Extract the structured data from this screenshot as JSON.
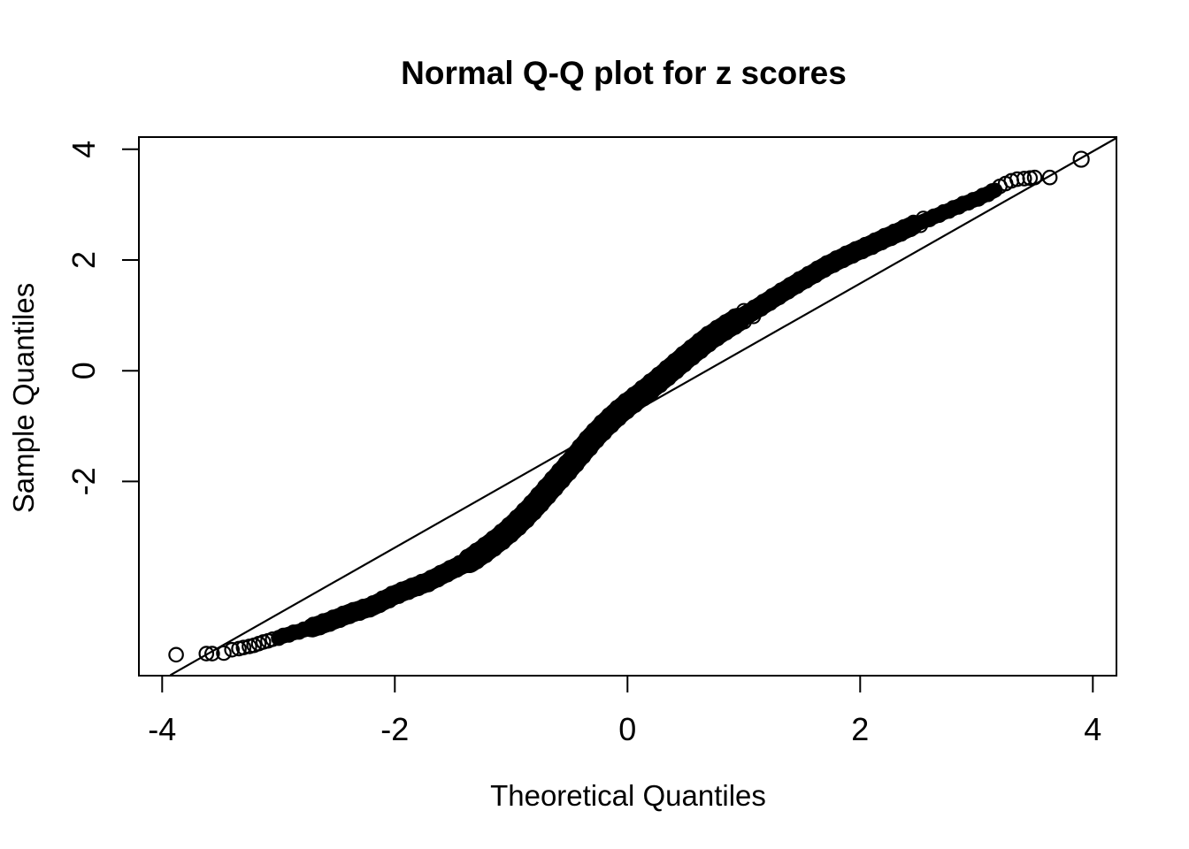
{
  "page": {
    "background": "#ffffff",
    "foreground": "#000000"
  },
  "chart_data": {
    "type": "scatter",
    "variant": "normal-qq-plot",
    "title": "Normal Q-Q plot for z scores",
    "xlabel": "Theoretical Quantiles",
    "ylabel": "Sample Quantiles",
    "x_ticks": [
      -4,
      -2,
      0,
      2,
      4
    ],
    "y_ticks": [
      -2,
      0,
      2,
      4
    ],
    "xlim": [
      -4.2,
      4.2
    ],
    "ylim": [
      -5.51,
      4.22
    ],
    "grid": false,
    "legend_position": "none",
    "point_color": "#000000",
    "line_color": "#000000",
    "marker": "open-circle",
    "reference_line": {
      "slope": 1.193,
      "intercept": -0.81,
      "x_start": -3.93,
      "x_end": 4.205
    },
    "curve_points": [
      [
        -3.0,
        -4.82
      ],
      [
        -2.88,
        -4.74
      ],
      [
        -2.71,
        -4.64
      ],
      [
        -2.55,
        -4.52
      ],
      [
        -2.38,
        -4.38
      ],
      [
        -2.2,
        -4.26
      ],
      [
        -2.0,
        -4.05
      ],
      [
        -1.87,
        -3.94
      ],
      [
        -1.72,
        -3.82
      ],
      [
        -1.6,
        -3.69
      ],
      [
        -1.48,
        -3.56
      ],
      [
        -1.36,
        -3.44
      ],
      [
        -1.23,
        -3.25
      ],
      [
        -1.1,
        -3.04
      ],
      [
        -1.0,
        -2.86
      ],
      [
        -0.9,
        -2.66
      ],
      [
        -0.8,
        -2.44
      ],
      [
        -0.7,
        -2.2
      ],
      [
        -0.6,
        -1.96
      ],
      [
        -0.5,
        -1.72
      ],
      [
        -0.4,
        -1.47
      ],
      [
        -0.3,
        -1.22
      ],
      [
        -0.2,
        -1.0
      ],
      [
        -0.1,
        -0.8
      ],
      [
        0.0,
        -0.62
      ],
      [
        0.1,
        -0.46
      ],
      [
        0.2,
        -0.29
      ],
      [
        0.3,
        -0.12
      ],
      [
        0.4,
        0.06
      ],
      [
        0.5,
        0.24
      ],
      [
        0.6,
        0.41
      ],
      [
        0.7,
        0.58
      ],
      [
        0.82,
        0.75
      ],
      [
        0.95,
        0.92
      ],
      [
        1.08,
        1.08
      ],
      [
        1.2,
        1.24
      ],
      [
        1.32,
        1.4
      ],
      [
        1.45,
        1.57
      ],
      [
        1.58,
        1.73
      ],
      [
        1.7,
        1.88
      ],
      [
        1.82,
        2.01
      ],
      [
        1.95,
        2.14
      ],
      [
        2.08,
        2.26
      ],
      [
        2.2,
        2.38
      ],
      [
        2.33,
        2.5
      ],
      [
        2.45,
        2.62
      ],
      [
        2.58,
        2.73
      ],
      [
        2.7,
        2.84
      ],
      [
        2.8,
        2.93
      ],
      [
        2.9,
        3.02
      ],
      [
        3.0,
        3.1
      ],
      [
        3.08,
        3.18
      ],
      [
        3.16,
        3.26
      ]
    ],
    "left_tail_points": [
      [
        -3.88,
        -5.13
      ],
      [
        -3.62,
        -5.11
      ],
      [
        -3.57,
        -5.11
      ],
      [
        -3.47,
        -5.1
      ],
      [
        -3.4,
        -5.04
      ],
      [
        -3.34,
        -5.02
      ],
      [
        -3.3,
        -5.0
      ],
      [
        -3.25,
        -4.98
      ],
      [
        -3.21,
        -4.96
      ],
      [
        -3.17,
        -4.93
      ],
      [
        -3.13,
        -4.9
      ],
      [
        -3.09,
        -4.88
      ],
      [
        -3.05,
        -4.85
      ]
    ],
    "right_tail_points": [
      [
        3.2,
        3.33
      ],
      [
        3.25,
        3.38
      ],
      [
        3.3,
        3.43
      ],
      [
        3.35,
        3.46
      ],
      [
        3.41,
        3.47
      ],
      [
        3.46,
        3.48
      ],
      [
        3.5,
        3.49
      ],
      [
        3.63,
        3.49
      ],
      [
        3.9,
        3.82
      ]
    ]
  }
}
